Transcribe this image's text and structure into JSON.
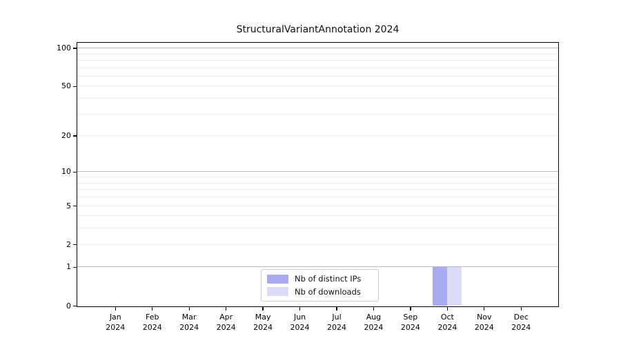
{
  "title": "StructuralVariantAnnotation 2024",
  "chart_data": {
    "type": "bar",
    "title": "StructuralVariantAnnotation 2024",
    "xlabel": "",
    "ylabel": "",
    "categories": [
      "Jan 2024",
      "Feb 2024",
      "Mar 2024",
      "Apr 2024",
      "May 2024",
      "Jun 2024",
      "Jul 2024",
      "Aug 2024",
      "Sep 2024",
      "Oct 2024",
      "Nov 2024",
      "Dec 2024"
    ],
    "series": [
      {
        "name": "Nb of distinct IPs",
        "color": "#aaaaf2",
        "values": [
          0,
          0,
          0,
          0,
          0,
          0,
          0,
          0,
          0,
          1,
          0,
          0
        ]
      },
      {
        "name": "Nb of downloads",
        "color": "#dcdcf8",
        "values": [
          0,
          0,
          0,
          0,
          0,
          0,
          0,
          0,
          0,
          1,
          0,
          0
        ]
      }
    ],
    "yscale": "log1p",
    "ylim": [
      0,
      110
    ],
    "ytick_values": [
      0,
      1,
      2,
      5,
      10,
      20,
      50,
      100
    ],
    "ytick_labels": [
      "0",
      "1",
      "2",
      "5",
      "10",
      "20",
      "50",
      "100"
    ],
    "gridlines": {
      "major_values": [
        1,
        10,
        100
      ],
      "minor_values": [
        2,
        3,
        4,
        5,
        6,
        7,
        8,
        9,
        20,
        30,
        40,
        50,
        60,
        70,
        80,
        90
      ],
      "major_color": "#b8b8b8",
      "minor_color": "#ebebeb"
    },
    "grid": true,
    "legend_position": "bottom-center"
  },
  "legend": {
    "entries": [
      {
        "label": "Nb of distinct IPs",
        "color": "#aaaaf2"
      },
      {
        "label": "Nb of downloads",
        "color": "#dcdcf8"
      }
    ]
  }
}
